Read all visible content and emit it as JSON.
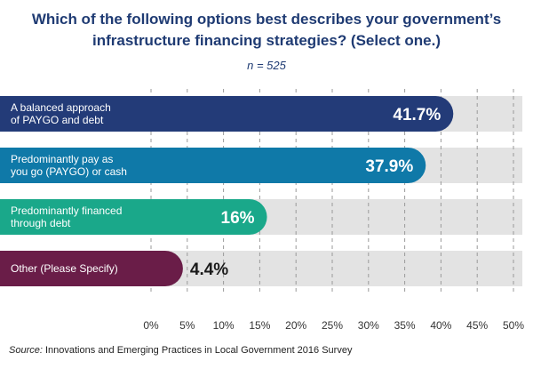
{
  "chart_data": {
    "type": "bar",
    "orientation": "horizontal",
    "title": "Which of the following options best describes your government’s infrastructure financing strategies? (Select one.)",
    "subtitle": "n = 525",
    "categories": [
      [
        "A balanced approach",
        "of PAYGO and debt"
      ],
      [
        "Predominantly pay as",
        "you go (PAYGO) or cash"
      ],
      [
        "Predominantly financed",
        "through debt"
      ],
      [
        "Other (Please Specify)"
      ]
    ],
    "values": [
      41.7,
      37.9,
      16,
      4.4
    ],
    "value_labels": [
      "41.7%",
      "37.9%",
      "16%",
      "4.4%"
    ],
    "colors": [
      "#233b78",
      "#0f79a8",
      "#1aa88a",
      "#6a1d48"
    ],
    "xlim": [
      0,
      50
    ],
    "xticks": [
      "0%",
      "5%",
      "10%",
      "15%",
      "20%",
      "25%",
      "30%",
      "35%",
      "40%",
      "45%",
      "50%"
    ],
    "grid": true
  },
  "source": {
    "label": "Source:",
    "text": " Innovations and Emerging Practices in Local Government 2016 Survey"
  }
}
